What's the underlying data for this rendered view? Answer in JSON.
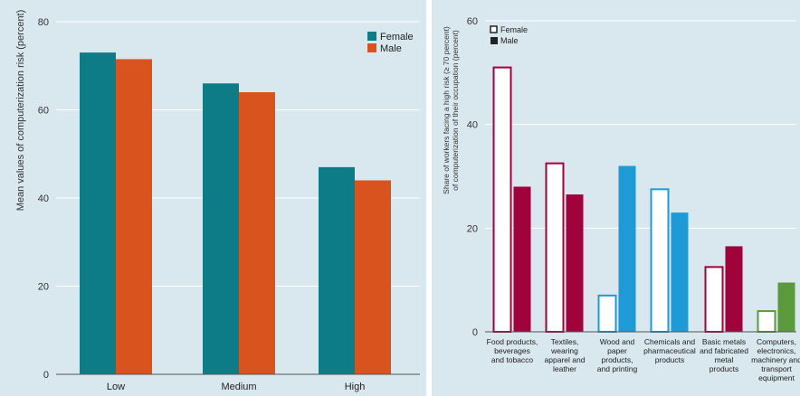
{
  "colors": {
    "female_left": "#0e7c86",
    "male_left": "#d9531e",
    "food": "#a0033b",
    "textiles": "#a0033b",
    "wood": "#1e9bd7",
    "chemicals": "#1e9bd7",
    "metals": "#a0033b",
    "computers": "#5a9a3c",
    "background": "#d9e7ee"
  },
  "chart_data": [
    {
      "type": "bar",
      "ylabel": "Mean values of computerization risk (percent)",
      "ylim": [
        0,
        80
      ],
      "yticks": [
        "0",
        "20",
        "40",
        "60",
        "80"
      ],
      "categories": [
        "Low",
        "Medium",
        "High"
      ],
      "series": [
        {
          "name": "Female",
          "values": [
            73,
            66,
            47
          ]
        },
        {
          "name": "Male",
          "values": [
            71.5,
            64,
            44
          ]
        }
      ],
      "legend_position": "top-right",
      "grid": true
    },
    {
      "type": "bar",
      "ylabel_line1": "Share of workers facing a high risk (≥ 70 percent)",
      "ylabel_line2": "of computerization of their occupation (percent)",
      "ylim": [
        0,
        60
      ],
      "yticks": [
        "0",
        "20",
        "40",
        "60"
      ],
      "categories": [
        [
          "Food products,",
          "beverages",
          "and tobacco"
        ],
        [
          "Textiles,",
          "wearing",
          "apparel and",
          "leather"
        ],
        [
          "Wood and",
          "paper",
          "products,",
          "and printing"
        ],
        [
          "Chemicals and",
          "pharmaceutical",
          "products"
        ],
        [
          "Basic metals",
          "and fabricated",
          "metal",
          "products"
        ],
        [
          "Computers,",
          "electronics,",
          "machinery and",
          "transport",
          "equipment"
        ]
      ],
      "series": [
        {
          "name": "Female",
          "style": "outline",
          "values": [
            51,
            32.5,
            7,
            27.5,
            12.5,
            4
          ]
        },
        {
          "name": "Male",
          "style": "filled",
          "values": [
            28,
            26.5,
            32,
            23,
            16.5,
            9.5
          ]
        }
      ],
      "legend_position": "top-left",
      "grid": true
    }
  ]
}
